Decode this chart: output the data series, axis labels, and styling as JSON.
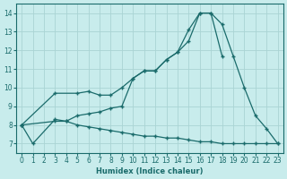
{
  "xlabel": "Humidex (Indice chaleur)",
  "xlim": [
    -0.5,
    23.5
  ],
  "ylim": [
    6.5,
    14.5
  ],
  "yticks": [
    7,
    8,
    9,
    10,
    11,
    12,
    13,
    14
  ],
  "xticks": [
    0,
    1,
    2,
    3,
    4,
    5,
    6,
    7,
    8,
    9,
    10,
    11,
    12,
    13,
    14,
    15,
    16,
    17,
    18,
    19,
    20,
    21,
    22,
    23
  ],
  "bg_color": "#c8ecec",
  "line_color": "#1a6b6b",
  "grid_color": "#aad4d4",
  "curve1_x": [
    0,
    1,
    3,
    4,
    5,
    6,
    7,
    8,
    9,
    10,
    11,
    12,
    13,
    14,
    15,
    16,
    17,
    18,
    19,
    20,
    21,
    22,
    23
  ],
  "curve1_y": [
    8.0,
    7.0,
    8.3,
    8.2,
    8.5,
    8.6,
    8.7,
    8.9,
    9.0,
    10.5,
    10.9,
    10.9,
    11.5,
    11.9,
    13.1,
    14.0,
    14.0,
    13.4,
    11.7,
    10.0,
    8.5,
    7.8,
    7.0
  ],
  "curve2_x": [
    0,
    3,
    5,
    6,
    7,
    8,
    9,
    10,
    11,
    12,
    13,
    14,
    15,
    16,
    17,
    18
  ],
  "curve2_y": [
    8.0,
    9.7,
    9.7,
    9.8,
    9.6,
    9.6,
    10.0,
    10.5,
    10.9,
    10.9,
    11.5,
    11.9,
    12.5,
    14.0,
    14.0,
    11.7
  ],
  "curve3_x": [
    0,
    3,
    4,
    5,
    6,
    7,
    8,
    9,
    10,
    11,
    12,
    13,
    14,
    15,
    16,
    17,
    18,
    19,
    20,
    21,
    22,
    23
  ],
  "curve3_y": [
    8.0,
    8.2,
    8.2,
    8.0,
    7.9,
    7.8,
    7.7,
    7.6,
    7.5,
    7.4,
    7.4,
    7.3,
    7.3,
    7.2,
    7.1,
    7.1,
    7.0,
    7.0,
    7.0,
    7.0,
    7.0,
    7.0
  ]
}
